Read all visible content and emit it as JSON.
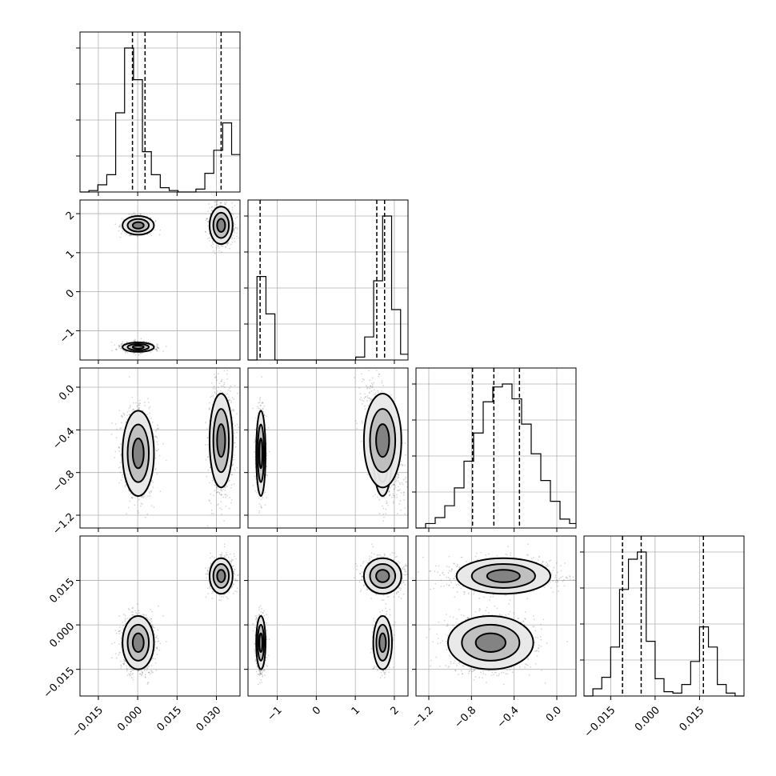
{
  "chart_data": {
    "type": "corner",
    "ndim": 4,
    "grid": true,
    "colors": {
      "points": "#000000",
      "fill_light": "#e8e8e8",
      "fill_mid": "#b8b8b8",
      "fill_dark": "#787878",
      "line": "#000000"
    },
    "params": [
      {
        "range": [
          -0.022,
          0.039
        ],
        "ticks": [
          -0.015,
          0.0,
          0.015,
          0.03
        ],
        "tick_labels": [
          "−0.015",
          "0.000",
          "0.015",
          "0.030"
        ],
        "hist": {
          "edges": [
            -0.022,
            -0.0186,
            -0.0152,
            -0.0118,
            -0.0084,
            -0.005,
            -0.0016,
            0.0018,
            0.0052,
            0.0086,
            0.012,
            0.0154,
            0.0188,
            0.0222,
            0.0256,
            0.029,
            0.0324,
            0.0358,
            0.039
          ],
          "counts": [
            0.0,
            0.01,
            0.05,
            0.12,
            0.55,
            1.0,
            0.78,
            0.28,
            0.12,
            0.03,
            0.01,
            0.0,
            0.0,
            0.02,
            0.13,
            0.29,
            0.48,
            0.26
          ]
        },
        "quantiles": [
          -0.002,
          0.0028,
          0.0318
        ]
      },
      {
        "range": [
          -1.75,
          2.35
        ],
        "ticks": [
          -1,
          0,
          1,
          2
        ],
        "tick_labels": [
          "−1",
          "0",
          "1",
          "2"
        ],
        "hist": {
          "edges": [
            -1.75,
            -1.52,
            -1.29,
            -1.06,
            -0.83,
            -0.6,
            -0.37,
            -0.14,
            0.09,
            0.32,
            0.55,
            0.78,
            1.01,
            1.24,
            1.47,
            1.7,
            1.93,
            2.16,
            2.35
          ],
          "counts": [
            0.0,
            0.58,
            0.32,
            0.0,
            0.0,
            0.0,
            0.0,
            0.0,
            0.0,
            0.0,
            0.0,
            0.0,
            0.02,
            0.16,
            0.55,
            1.0,
            0.35,
            0.04
          ]
        },
        "quantiles": [
          -1.44,
          1.55,
          1.75
        ]
      },
      {
        "range": [
          -1.32,
          0.18
        ],
        "ticks": [
          -1.2,
          -0.8,
          -0.4,
          0.0
        ],
        "tick_labels": [
          "−1.2",
          "−0.8",
          "−0.4",
          "0.0"
        ],
        "hist": {
          "edges": [
            -1.32,
            -1.23,
            -1.14,
            -1.05,
            -0.96,
            -0.87,
            -0.78,
            -0.69,
            -0.6,
            -0.51,
            -0.42,
            -0.33,
            -0.24,
            -0.15,
            -0.06,
            0.03,
            0.12,
            0.18
          ],
          "counts": [
            0.0,
            0.03,
            0.07,
            0.15,
            0.27,
            0.45,
            0.64,
            0.85,
            0.95,
            0.97,
            0.87,
            0.7,
            0.5,
            0.32,
            0.18,
            0.06,
            0.03
          ]
        },
        "quantiles": [
          -0.79,
          -0.59,
          -0.35
        ]
      },
      {
        "range": [
          -0.024,
          0.03
        ],
        "ticks": [
          -0.015,
          0.0,
          0.015
        ],
        "tick_labels": [
          "−0.015",
          "0.000",
          "0.015"
        ],
        "hist": {
          "edges": [
            -0.024,
            -0.021,
            -0.018,
            -0.015,
            -0.012,
            -0.009,
            -0.006,
            -0.003,
            0.0,
            0.003,
            0.006,
            0.009,
            0.012,
            0.015,
            0.018,
            0.021,
            0.024,
            0.027,
            0.03
          ],
          "counts": [
            0.0,
            0.05,
            0.13,
            0.34,
            0.74,
            0.95,
            1.0,
            0.38,
            0.12,
            0.03,
            0.02,
            0.08,
            0.24,
            0.48,
            0.34,
            0.08,
            0.02,
            0.0
          ]
        },
        "quantiles": [
          -0.011,
          -0.0047,
          0.0163
        ]
      }
    ],
    "clusters": [
      {
        "mean": [
          0.0002,
          1.7,
          -0.62,
          -0.006
        ],
        "sd": [
          0.003,
          0.12,
          0.2,
          0.0045
        ],
        "weight": 0.19
      },
      {
        "mean": [
          0.0002,
          -1.42,
          -0.62,
          -0.006
        ],
        "sd": [
          0.003,
          0.06,
          0.2,
          0.0045
        ],
        "weight": 0.4
      },
      {
        "mean": [
          0.0318,
          1.7,
          -0.5,
          0.0165
        ],
        "sd": [
          0.0022,
          0.24,
          0.22,
          0.003
        ],
        "weight": 0.41
      }
    ]
  }
}
